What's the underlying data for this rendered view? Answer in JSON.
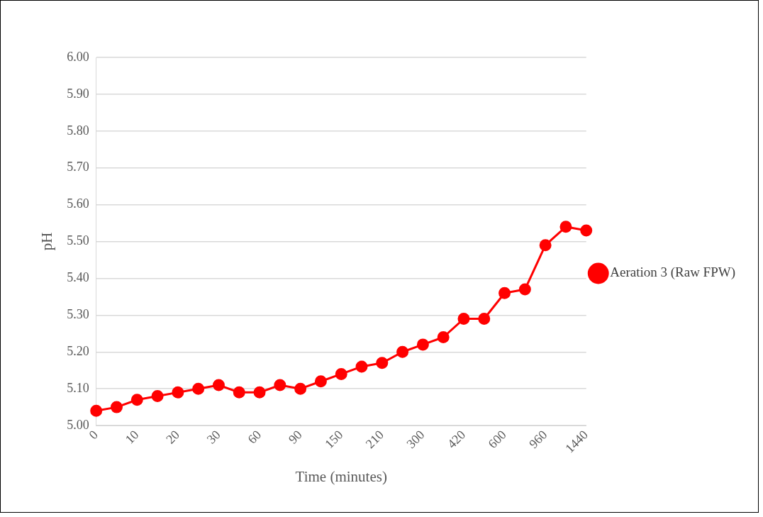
{
  "chart_data": {
    "type": "line",
    "xlabel": "Time (minutes)",
    "ylabel": "pH",
    "categories": [
      "0",
      null,
      "10",
      null,
      "20",
      null,
      "30",
      null,
      "60",
      null,
      "90",
      null,
      "150",
      null,
      "210",
      null,
      "300",
      null,
      "420",
      null,
      "600",
      null,
      "960",
      null,
      "1440"
    ],
    "series": [
      {
        "name": "Aeration 3 (Raw FPW)",
        "color": "#ff0000",
        "values": [
          5.04,
          5.05,
          5.07,
          5.08,
          5.09,
          5.1,
          5.11,
          5.09,
          5.09,
          5.11,
          5.1,
          5.12,
          5.14,
          5.16,
          5.17,
          5.2,
          5.22,
          5.24,
          5.29,
          5.29,
          5.36,
          5.37,
          5.49,
          5.54,
          5.53
        ]
      }
    ],
    "ylim": [
      5.0,
      6.0
    ],
    "yticks": [
      {
        "value": 5.0,
        "label": "5.00"
      },
      {
        "value": 5.1,
        "label": "5.10"
      },
      {
        "value": 5.2,
        "label": "5.20"
      },
      {
        "value": 5.3,
        "label": "5.30"
      },
      {
        "value": 5.4,
        "label": "5.40"
      },
      {
        "value": 5.5,
        "label": "5.50"
      },
      {
        "value": 5.6,
        "label": "5.60"
      },
      {
        "value": 5.7,
        "label": "5.70"
      },
      {
        "value": 5.8,
        "label": "5.80"
      },
      {
        "value": 5.9,
        "label": "5.90"
      },
      {
        "value": 6.0,
        "label": "6.00"
      }
    ],
    "grid": "y",
    "legend": "right",
    "marker": "circle",
    "line_style": "solid"
  }
}
